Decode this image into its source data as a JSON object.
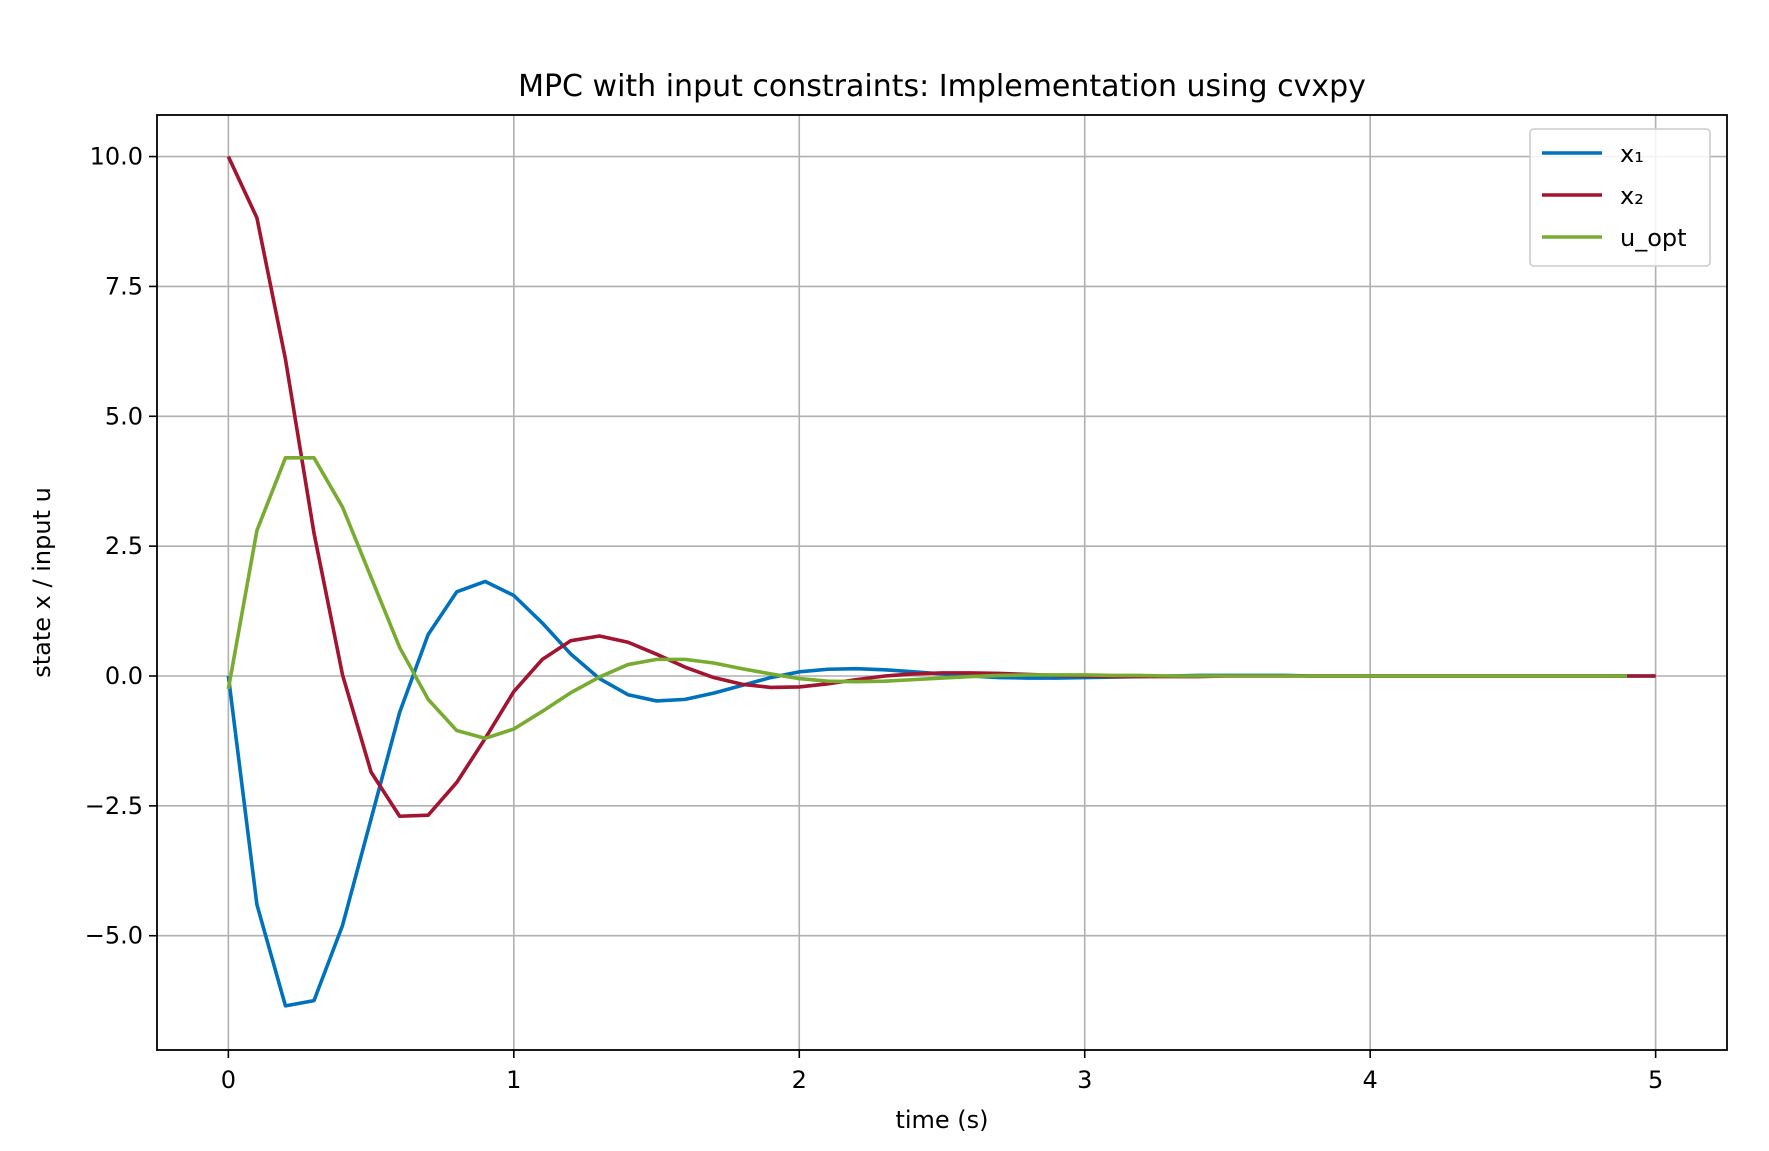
{
  "chart_data": {
    "type": "line",
    "title": "MPC with input constraints: Implementation using cvxpy",
    "xlabel": "time (s)",
    "ylabel": "state x / input u",
    "xlim": [
      -0.25,
      5.25
    ],
    "ylim": [
      -7.2,
      10.8
    ],
    "xticks": [
      0,
      1,
      2,
      3,
      4,
      5
    ],
    "xtick_labels": [
      "0",
      "1",
      "2",
      "3",
      "4",
      "5"
    ],
    "yticks": [
      -5.0,
      -2.5,
      0.0,
      2.5,
      5.0,
      7.5,
      10.0
    ],
    "ytick_labels": [
      "−5.0",
      "−2.5",
      "0.0",
      "2.5",
      "5.0",
      "7.5",
      "10.0"
    ],
    "grid": true,
    "legend_position": "top-right",
    "series": [
      {
        "name": "x₁",
        "color": "#0072bd",
        "x": [
          0,
          0.1,
          0.2,
          0.3,
          0.4,
          0.5,
          0.6,
          0.7,
          0.8,
          0.9,
          1.0,
          1.1,
          1.2,
          1.3,
          1.4,
          1.5,
          1.6,
          1.7,
          1.8,
          1.9,
          2.0,
          2.1,
          2.2,
          2.3,
          2.4,
          2.5,
          2.6,
          2.7,
          2.8,
          2.9,
          3.0,
          3.1,
          3.2,
          3.3,
          3.4,
          3.5,
          3.6,
          3.7,
          3.8,
          3.9,
          4.0,
          4.1,
          4.2,
          4.3,
          4.4,
          4.5,
          4.6,
          4.7,
          4.8,
          4.9,
          5.0
        ],
        "values": [
          0.0,
          -4.4,
          -6.35,
          -6.25,
          -4.8,
          -2.75,
          -0.7,
          0.8,
          1.62,
          1.82,
          1.55,
          1.02,
          0.42,
          -0.05,
          -0.36,
          -0.48,
          -0.45,
          -0.33,
          -0.18,
          -0.03,
          0.08,
          0.13,
          0.14,
          0.12,
          0.08,
          0.04,
          0.0,
          -0.03,
          -0.04,
          -0.04,
          -0.03,
          -0.02,
          -0.01,
          0.0,
          0.01,
          0.01,
          0.01,
          0.01,
          0.0,
          0.0,
          0.0,
          0.0,
          0.0,
          0.0,
          0.0,
          0.0,
          0.0,
          0.0,
          0.0,
          0.0,
          0.0
        ]
      },
      {
        "name": "x₂",
        "color": "#a2142f",
        "x": [
          0,
          0.1,
          0.2,
          0.3,
          0.4,
          0.5,
          0.6,
          0.7,
          0.8,
          0.9,
          1.0,
          1.1,
          1.2,
          1.3,
          1.4,
          1.5,
          1.6,
          1.7,
          1.8,
          1.9,
          2.0,
          2.1,
          2.2,
          2.3,
          2.4,
          2.5,
          2.6,
          2.7,
          2.8,
          2.9,
          3.0,
          3.1,
          3.2,
          3.3,
          3.4,
          3.5,
          3.6,
          3.7,
          3.8,
          3.9,
          4.0,
          4.1,
          4.2,
          4.3,
          4.4,
          4.5,
          4.6,
          4.7,
          4.8,
          4.9,
          5.0
        ],
        "values": [
          10.0,
          8.82,
          6.1,
          2.75,
          0.02,
          -1.85,
          -2.7,
          -2.68,
          -2.05,
          -1.2,
          -0.3,
          0.32,
          0.68,
          0.77,
          0.65,
          0.42,
          0.17,
          -0.03,
          -0.16,
          -0.22,
          -0.21,
          -0.15,
          -0.07,
          0.0,
          0.04,
          0.06,
          0.06,
          0.05,
          0.03,
          0.01,
          0.0,
          -0.01,
          -0.01,
          -0.01,
          -0.01,
          0.0,
          0.0,
          0.0,
          0.0,
          0.0,
          0.0,
          0.0,
          0.0,
          0.0,
          0.0,
          0.0,
          0.0,
          0.0,
          0.0,
          0.0,
          0.0
        ]
      },
      {
        "name": "u_opt",
        "color": "#77ac30",
        "x": [
          0,
          0.1,
          0.2,
          0.3,
          0.4,
          0.5,
          0.6,
          0.7,
          0.8,
          0.9,
          1.0,
          1.1,
          1.2,
          1.3,
          1.4,
          1.5,
          1.6,
          1.7,
          1.8,
          1.9,
          2.0,
          2.1,
          2.2,
          2.3,
          2.4,
          2.5,
          2.6,
          2.7,
          2.8,
          2.9,
          3.0,
          3.1,
          3.2,
          3.3,
          3.4,
          3.5,
          3.6,
          3.7,
          3.8,
          3.9,
          4.0,
          4.1,
          4.2,
          4.3,
          4.4,
          4.5,
          4.6,
          4.7,
          4.8,
          4.9
        ],
        "values": [
          -0.25,
          2.8,
          4.2,
          4.2,
          3.25,
          1.9,
          0.55,
          -0.45,
          -1.05,
          -1.2,
          -1.02,
          -0.68,
          -0.32,
          -0.02,
          0.22,
          0.32,
          0.32,
          0.25,
          0.14,
          0.04,
          -0.05,
          -0.1,
          -0.11,
          -0.1,
          -0.07,
          -0.04,
          -0.01,
          0.01,
          0.02,
          0.02,
          0.02,
          0.01,
          0.01,
          0.0,
          0.0,
          0.0,
          0.0,
          0.0,
          0.0,
          0.0,
          0.0,
          0.0,
          0.0,
          0.0,
          0.0,
          0.0,
          0.0,
          0.0,
          0.0,
          0.0
        ]
      }
    ]
  }
}
